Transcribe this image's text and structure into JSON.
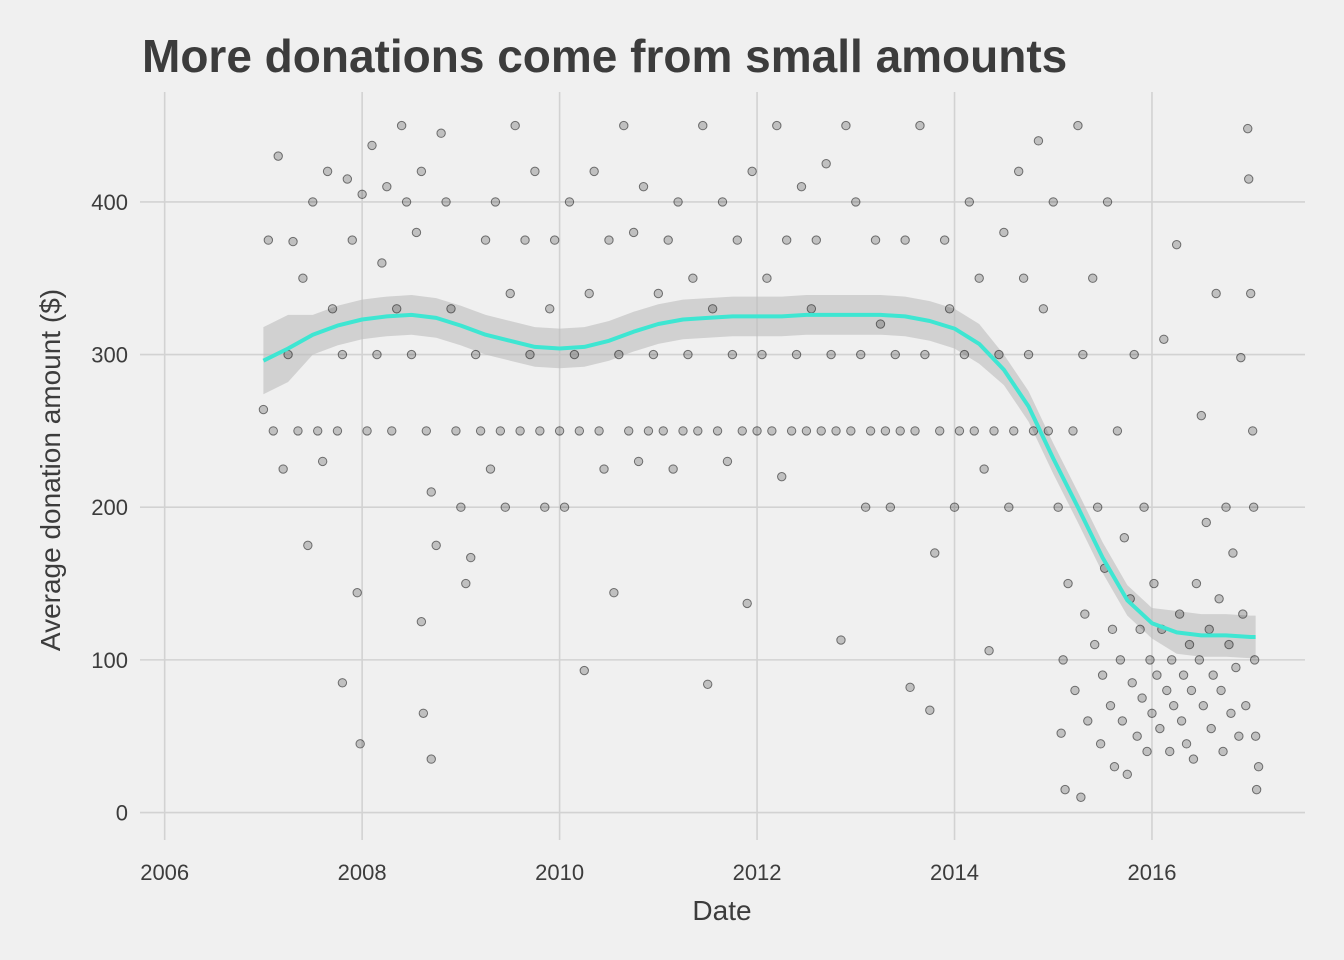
{
  "chart_data": {
    "type": "scatter",
    "title": "More donations come from small amounts",
    "xlabel": "Date",
    "ylabel": "Average donation amount ($)",
    "x_ticks": [
      "2006",
      "2008",
      "2010",
      "2012",
      "2014",
      "2016"
    ],
    "y_ticks": [
      "0",
      "100",
      "200",
      "300",
      "400"
    ],
    "xlim": [
      2005.75,
      2017.55
    ],
    "ylim": [
      -18,
      472
    ],
    "grid": true,
    "legend": "none",
    "colors": {
      "background": "#f0f0f0",
      "grid": "#d2d2d2",
      "points": "#000000",
      "smooth_line": "#3ee6d2",
      "confidence_band": "#bdbdbd",
      "text": "#3c3c3c"
    },
    "series": [
      {
        "type": "scatter",
        "points": [
          [
            2007.0,
            264
          ],
          [
            2007.05,
            375
          ],
          [
            2007.1,
            250
          ],
          [
            2007.15,
            430
          ],
          [
            2007.2,
            225
          ],
          [
            2007.25,
            300
          ],
          [
            2007.3,
            374
          ],
          [
            2007.35,
            250
          ],
          [
            2007.4,
            350
          ],
          [
            2007.45,
            175
          ],
          [
            2007.5,
            400
          ],
          [
            2007.55,
            250
          ],
          [
            2007.6,
            230
          ],
          [
            2007.65,
            420
          ],
          [
            2007.7,
            330
          ],
          [
            2007.75,
            250
          ],
          [
            2007.8,
            300
          ],
          [
            2007.85,
            415
          ],
          [
            2007.9,
            375
          ],
          [
            2007.95,
            144
          ],
          [
            2007.8,
            85
          ],
          [
            2007.98,
            45
          ],
          [
            2008.0,
            405
          ],
          [
            2008.05,
            250
          ],
          [
            2008.1,
            437
          ],
          [
            2008.15,
            300
          ],
          [
            2008.2,
            360
          ],
          [
            2008.25,
            410
          ],
          [
            2008.3,
            250
          ],
          [
            2008.35,
            330
          ],
          [
            2008.4,
            450
          ],
          [
            2008.45,
            400
          ],
          [
            2008.5,
            300
          ],
          [
            2008.55,
            380
          ],
          [
            2008.6,
            420
          ],
          [
            2008.65,
            250
          ],
          [
            2008.7,
            210
          ],
          [
            2008.75,
            175
          ],
          [
            2008.6,
            125
          ],
          [
            2008.62,
            65
          ],
          [
            2008.7,
            35
          ],
          [
            2008.8,
            445
          ],
          [
            2008.85,
            400
          ],
          [
            2008.9,
            330
          ],
          [
            2008.95,
            250
          ],
          [
            2009.0,
            200
          ],
          [
            2009.05,
            150
          ],
          [
            2009.1,
            167
          ],
          [
            2009.15,
            300
          ],
          [
            2009.2,
            250
          ],
          [
            2009.25,
            375
          ],
          [
            2009.3,
            225
          ],
          [
            2009.35,
            400
          ],
          [
            2009.4,
            250
          ],
          [
            2009.45,
            200
          ],
          [
            2009.5,
            340
          ],
          [
            2009.55,
            450
          ],
          [
            2009.6,
            250
          ],
          [
            2009.65,
            375
          ],
          [
            2009.7,
            300
          ],
          [
            2009.75,
            420
          ],
          [
            2009.8,
            250
          ],
          [
            2009.85,
            200
          ],
          [
            2009.9,
            330
          ],
          [
            2009.95,
            375
          ],
          [
            2010.0,
            250
          ],
          [
            2010.05,
            200
          ],
          [
            2010.1,
            400
          ],
          [
            2010.15,
            300
          ],
          [
            2010.2,
            250
          ],
          [
            2010.25,
            93
          ],
          [
            2010.3,
            340
          ],
          [
            2010.35,
            420
          ],
          [
            2010.4,
            250
          ],
          [
            2010.45,
            225
          ],
          [
            2010.5,
            375
          ],
          [
            2010.55,
            144
          ],
          [
            2010.6,
            300
          ],
          [
            2010.65,
            450
          ],
          [
            2010.7,
            250
          ],
          [
            2010.75,
            380
          ],
          [
            2010.8,
            230
          ],
          [
            2010.85,
            410
          ],
          [
            2010.9,
            250
          ],
          [
            2010.95,
            300
          ],
          [
            2011.0,
            340
          ],
          [
            2011.05,
            250
          ],
          [
            2011.1,
            375
          ],
          [
            2011.15,
            225
          ],
          [
            2011.2,
            400
          ],
          [
            2011.25,
            250
          ],
          [
            2011.3,
            300
          ],
          [
            2011.35,
            350
          ],
          [
            2011.4,
            250
          ],
          [
            2011.45,
            450
          ],
          [
            2011.5,
            84
          ],
          [
            2011.55,
            330
          ],
          [
            2011.6,
            250
          ],
          [
            2011.65,
            400
          ],
          [
            2011.7,
            230
          ],
          [
            2011.75,
            300
          ],
          [
            2011.8,
            375
          ],
          [
            2011.85,
            250
          ],
          [
            2011.9,
            137
          ],
          [
            2011.95,
            420
          ],
          [
            2012.0,
            250
          ],
          [
            2012.05,
            300
          ],
          [
            2012.1,
            350
          ],
          [
            2012.15,
            250
          ],
          [
            2012.2,
            450
          ],
          [
            2012.25,
            220
          ],
          [
            2012.3,
            375
          ],
          [
            2012.35,
            250
          ],
          [
            2012.4,
            300
          ],
          [
            2012.45,
            410
          ],
          [
            2012.5,
            250
          ],
          [
            2012.55,
            330
          ],
          [
            2012.6,
            375
          ],
          [
            2012.65,
            250
          ],
          [
            2012.7,
            425
          ],
          [
            2012.75,
            300
          ],
          [
            2012.8,
            250
          ],
          [
            2012.85,
            113
          ],
          [
            2012.9,
            450
          ],
          [
            2012.95,
            250
          ],
          [
            2013.0,
            400
          ],
          [
            2013.05,
            300
          ],
          [
            2013.1,
            200
          ],
          [
            2013.15,
            250
          ],
          [
            2013.2,
            375
          ],
          [
            2013.25,
            320
          ],
          [
            2013.3,
            250
          ],
          [
            2013.35,
            200
          ],
          [
            2013.4,
            300
          ],
          [
            2013.45,
            250
          ],
          [
            2013.5,
            375
          ],
          [
            2013.55,
            82
          ],
          [
            2013.6,
            250
          ],
          [
            2013.65,
            450
          ],
          [
            2013.7,
            300
          ],
          [
            2013.75,
            67
          ],
          [
            2013.8,
            170
          ],
          [
            2013.85,
            250
          ],
          [
            2013.9,
            375
          ],
          [
            2013.95,
            330
          ],
          [
            2014.0,
            200
          ],
          [
            2014.05,
            250
          ],
          [
            2014.1,
            300
          ],
          [
            2014.15,
            400
          ],
          [
            2014.2,
            250
          ],
          [
            2014.25,
            350
          ],
          [
            2014.3,
            225
          ],
          [
            2014.35,
            106
          ],
          [
            2014.4,
            250
          ],
          [
            2014.45,
            300
          ],
          [
            2014.5,
            380
          ],
          [
            2014.55,
            200
          ],
          [
            2014.6,
            250
          ],
          [
            2014.65,
            420
          ],
          [
            2014.7,
            350
          ],
          [
            2014.75,
            300
          ],
          [
            2014.8,
            250
          ],
          [
            2014.85,
            440
          ],
          [
            2014.9,
            330
          ],
          [
            2014.95,
            250
          ],
          [
            2015.0,
            400
          ],
          [
            2015.05,
            200
          ],
          [
            2015.08,
            52
          ],
          [
            2015.1,
            100
          ],
          [
            2015.12,
            15
          ],
          [
            2015.15,
            150
          ],
          [
            2015.2,
            250
          ],
          [
            2015.22,
            80
          ],
          [
            2015.25,
            450
          ],
          [
            2015.28,
            10
          ],
          [
            2015.3,
            300
          ],
          [
            2015.32,
            130
          ],
          [
            2015.35,
            60
          ],
          [
            2015.4,
            350
          ],
          [
            2015.42,
            110
          ],
          [
            2015.45,
            200
          ],
          [
            2015.48,
            45
          ],
          [
            2015.5,
            90
          ],
          [
            2015.52,
            160
          ],
          [
            2015.55,
            400
          ],
          [
            2015.58,
            70
          ],
          [
            2015.6,
            120
          ],
          [
            2015.62,
            30
          ],
          [
            2015.65,
            250
          ],
          [
            2015.68,
            100
          ],
          [
            2015.7,
            60
          ],
          [
            2015.72,
            180
          ],
          [
            2015.75,
            25
          ],
          [
            2015.78,
            140
          ],
          [
            2015.8,
            85
          ],
          [
            2015.82,
            300
          ],
          [
            2015.85,
            50
          ],
          [
            2015.88,
            120
          ],
          [
            2015.9,
            75
          ],
          [
            2015.92,
            200
          ],
          [
            2015.95,
            40
          ],
          [
            2015.98,
            100
          ],
          [
            2016.0,
            65
          ],
          [
            2016.02,
            150
          ],
          [
            2016.05,
            90
          ],
          [
            2016.08,
            55
          ],
          [
            2016.1,
            120
          ],
          [
            2016.12,
            310
          ],
          [
            2016.15,
            80
          ],
          [
            2016.18,
            40
          ],
          [
            2016.2,
            100
          ],
          [
            2016.22,
            70
          ],
          [
            2016.25,
            372
          ],
          [
            2016.28,
            130
          ],
          [
            2016.3,
            60
          ],
          [
            2016.32,
            90
          ],
          [
            2016.35,
            45
          ],
          [
            2016.38,
            110
          ],
          [
            2016.4,
            80
          ],
          [
            2016.42,
            35
          ],
          [
            2016.45,
            150
          ],
          [
            2016.48,
            100
          ],
          [
            2016.5,
            260
          ],
          [
            2016.52,
            70
          ],
          [
            2016.55,
            190
          ],
          [
            2016.58,
            120
          ],
          [
            2016.6,
            55
          ],
          [
            2016.62,
            90
          ],
          [
            2016.65,
            340
          ],
          [
            2016.68,
            140
          ],
          [
            2016.7,
            80
          ],
          [
            2016.72,
            40
          ],
          [
            2016.75,
            200
          ],
          [
            2016.78,
            110
          ],
          [
            2016.8,
            65
          ],
          [
            2016.82,
            170
          ],
          [
            2016.85,
            95
          ],
          [
            2016.88,
            50
          ],
          [
            2016.9,
            298
          ],
          [
            2016.92,
            130
          ],
          [
            2016.95,
            70
          ],
          [
            2016.97,
            448
          ],
          [
            2016.98,
            415
          ],
          [
            2017.0,
            340
          ],
          [
            2017.02,
            250
          ],
          [
            2017.03,
            200
          ],
          [
            2017.04,
            100
          ],
          [
            2017.05,
            50
          ],
          [
            2017.06,
            15
          ],
          [
            2017.08,
            30
          ]
        ]
      },
      {
        "type": "smooth",
        "points": [
          [
            2007.0,
            296
          ],
          [
            2007.25,
            304
          ],
          [
            2007.5,
            313
          ],
          [
            2007.75,
            319
          ],
          [
            2008.0,
            323
          ],
          [
            2008.25,
            325
          ],
          [
            2008.5,
            326
          ],
          [
            2008.75,
            324
          ],
          [
            2009.0,
            319
          ],
          [
            2009.25,
            313
          ],
          [
            2009.5,
            309
          ],
          [
            2009.75,
            305
          ],
          [
            2010.0,
            304
          ],
          [
            2010.25,
            305
          ],
          [
            2010.5,
            309
          ],
          [
            2010.75,
            315
          ],
          [
            2011.0,
            320
          ],
          [
            2011.25,
            323
          ],
          [
            2011.5,
            324
          ],
          [
            2011.75,
            325
          ],
          [
            2012.0,
            325
          ],
          [
            2012.25,
            325
          ],
          [
            2012.5,
            326
          ],
          [
            2012.75,
            326
          ],
          [
            2013.0,
            326
          ],
          [
            2013.25,
            326
          ],
          [
            2013.5,
            325
          ],
          [
            2013.75,
            322
          ],
          [
            2014.0,
            317
          ],
          [
            2014.25,
            307
          ],
          [
            2014.5,
            290
          ],
          [
            2014.75,
            266
          ],
          [
            2015.0,
            232
          ],
          [
            2015.25,
            200
          ],
          [
            2015.5,
            167
          ],
          [
            2015.75,
            139
          ],
          [
            2016.0,
            124
          ],
          [
            2016.25,
            118
          ],
          [
            2016.5,
            116
          ],
          [
            2016.75,
            116
          ],
          [
            2017.0,
            115
          ],
          [
            2017.05,
            115
          ]
        ]
      }
    ]
  }
}
